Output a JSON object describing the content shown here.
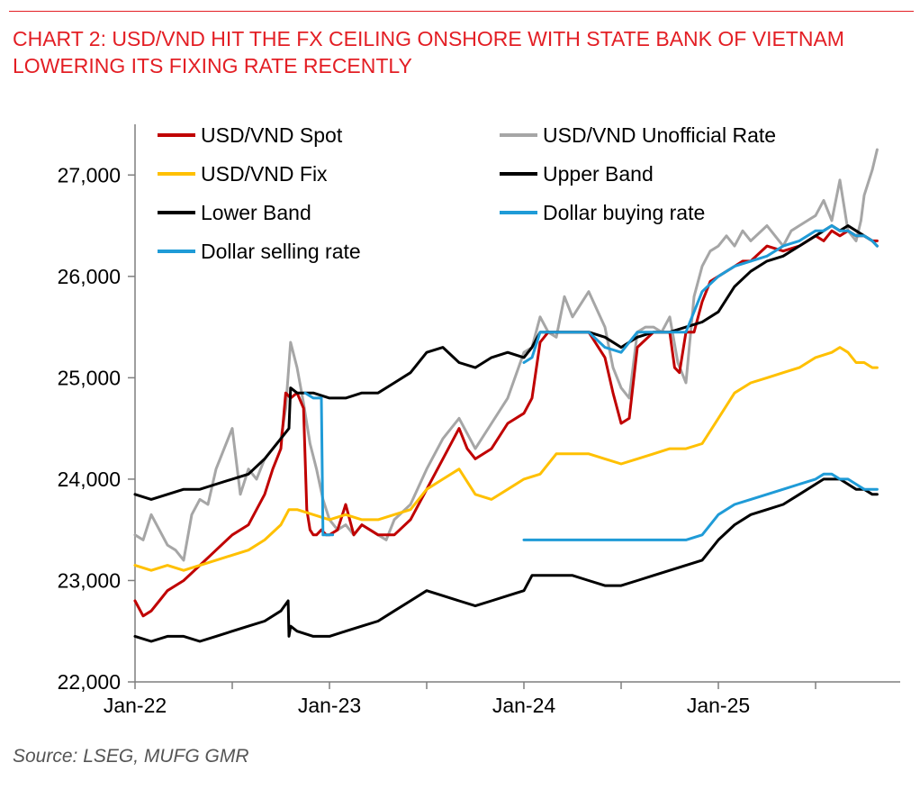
{
  "page": {
    "title": "CHART 2: USD/VND HIT THE FX CEILING ONSHORE WITH STATE BANK OF VIETNAM LOWERING ITS FIXING RATE RECENTLY",
    "source": "Source: LSEG, MUFG GMR",
    "accent_color": "#e31e24"
  },
  "chart_data": {
    "type": "line",
    "title": "CHART 2: USD/VND HIT THE FX CEILING ONSHORE WITH STATE BANK OF VIETNAM LOWERING ITS FIXING RATE RECENTLY",
    "xlabel": "",
    "ylabel": "",
    "x_unit": "months since Jan-22",
    "xlim": [
      0,
      46
    ],
    "ylim": [
      22000,
      27500
    ],
    "y_ticks": [
      22000,
      23000,
      24000,
      25000,
      26000,
      27000
    ],
    "y_tick_labels": [
      "22,000",
      "23,000",
      "24,000",
      "25,000",
      "26,000",
      "27,000"
    ],
    "x_ticks": [
      0,
      12,
      24,
      36
    ],
    "x_tick_labels": [
      "Jan-22",
      "Jan-23",
      "Jan-24",
      "Jan-25"
    ],
    "grid": false,
    "legend_position": "top-left",
    "series": [
      {
        "name": "USD/VND Unofficial Rate",
        "color": "#a6a6a6",
        "x": [
          0,
          0.5,
          1,
          1.5,
          2,
          2.5,
          3,
          3.5,
          4,
          4.5,
          5,
          5.5,
          6,
          6.5,
          7,
          7.5,
          8,
          8.5,
          9,
          9.3,
          9.6,
          10,
          10.4,
          10.8,
          11.2,
          11.6,
          12,
          12.5,
          13,
          13.5,
          14,
          14.5,
          15,
          15.5,
          16,
          17,
          18,
          19,
          20,
          21,
          22,
          23,
          24,
          24.5,
          25,
          25.5,
          26,
          26.5,
          27,
          28,
          29,
          29.5,
          30,
          30.5,
          31,
          31.5,
          32,
          32.5,
          33,
          33.5,
          34,
          34.5,
          35,
          35.5,
          36,
          36.5,
          37,
          37.5,
          38,
          39,
          39.5,
          40,
          40.5,
          41,
          41.5,
          42,
          42.5,
          43,
          43.5,
          44,
          44.5,
          44.8,
          45,
          45.5,
          45.8
        ],
        "values": [
          23450,
          23400,
          23650,
          23500,
          23350,
          23300,
          23200,
          23650,
          23800,
          23750,
          24100,
          24300,
          24500,
          23850,
          24100,
          24000,
          24200,
          24300,
          24400,
          24700,
          25350,
          25100,
          24750,
          24350,
          24100,
          23800,
          23600,
          23500,
          23550,
          23450,
          23550,
          23500,
          23450,
          23400,
          23600,
          23750,
          24100,
          24400,
          24600,
          24300,
          24550,
          24800,
          25250,
          25300,
          25600,
          25450,
          25400,
          25800,
          25600,
          25850,
          25500,
          25100,
          24900,
          24800,
          25450,
          25500,
          25500,
          25450,
          25600,
          25150,
          24950,
          25800,
          26100,
          26250,
          26300,
          26400,
          26300,
          26450,
          26350,
          26500,
          26400,
          26300,
          26450,
          26500,
          26550,
          26600,
          26750,
          26550,
          26950,
          26450,
          26350,
          26550,
          26800,
          27050,
          27250
        ]
      },
      {
        "name": "USD/VND Spot",
        "color": "#c00000",
        "x": [
          0,
          0.5,
          1,
          1.5,
          2,
          3,
          4,
          5,
          6,
          7,
          8,
          8.5,
          9,
          9.3,
          9.6,
          10,
          10.4,
          10.6,
          10.8,
          11,
          11.2,
          11.5,
          11.8,
          12,
          12.5,
          13,
          13.5,
          14,
          15,
          16,
          17,
          18,
          19,
          20,
          20.5,
          21,
          22,
          23,
          24,
          24.5,
          25,
          25.5,
          26,
          27,
          28,
          29,
          29.5,
          30,
          30.5,
          31,
          32,
          33,
          33.3,
          33.6,
          34,
          34.5,
          35,
          35.5,
          36,
          36.5,
          37,
          37.5,
          38,
          39,
          40,
          41,
          42,
          42.5,
          43,
          43.5,
          44,
          44.5,
          45,
          45.5,
          45.8
        ],
        "values": [
          22800,
          22650,
          22700,
          22800,
          22900,
          23000,
          23150,
          23300,
          23450,
          23550,
          23850,
          24100,
          24300,
          24850,
          24800,
          24850,
          24700,
          23700,
          23500,
          23450,
          23450,
          23500,
          23450,
          23450,
          23500,
          23750,
          23450,
          23550,
          23450,
          23450,
          23600,
          23900,
          24200,
          24500,
          24300,
          24200,
          24300,
          24550,
          24650,
          24800,
          25350,
          25450,
          25450,
          25450,
          25450,
          25200,
          24850,
          24550,
          24600,
          25300,
          25450,
          25450,
          25100,
          25050,
          25450,
          25450,
          25750,
          25950,
          26000,
          26050,
          26100,
          26150,
          26150,
          26300,
          26250,
          26300,
          26400,
          26350,
          26450,
          26400,
          26450,
          26400,
          26400,
          26350,
          26350
        ]
      },
      {
        "name": "USD/VND Fix",
        "color": "#ffc000",
        "x": [
          0,
          1,
          2,
          3,
          4,
          5,
          6,
          7,
          8,
          9,
          9.5,
          10,
          11,
          12,
          13,
          14,
          15,
          16,
          17,
          18,
          19,
          20,
          21,
          22,
          23,
          24,
          25,
          26,
          27,
          28,
          29,
          30,
          31,
          32,
          33,
          34,
          35,
          36,
          37,
          38,
          39,
          40,
          41,
          42,
          43,
          43.5,
          44,
          44.5,
          45,
          45.5,
          45.8
        ],
        "values": [
          23150,
          23100,
          23150,
          23100,
          23150,
          23200,
          23250,
          23300,
          23400,
          23550,
          23700,
          23700,
          23650,
          23600,
          23650,
          23600,
          23600,
          23650,
          23700,
          23900,
          24000,
          24100,
          23850,
          23800,
          23900,
          24000,
          24050,
          24250,
          24250,
          24250,
          24200,
          24150,
          24200,
          24250,
          24300,
          24300,
          24350,
          24600,
          24850,
          24950,
          25000,
          25050,
          25100,
          25200,
          25250,
          25300,
          25250,
          25150,
          25150,
          25100,
          25100
        ]
      },
      {
        "name": "Upper Band",
        "color": "#000000",
        "x": [
          0,
          1,
          2,
          3,
          4,
          5,
          6,
          7,
          8,
          9,
          9.5,
          9.6,
          10,
          10.5,
          11,
          12,
          13,
          14,
          15,
          16,
          17,
          18,
          19,
          20,
          21,
          22,
          23,
          24,
          24.5,
          25,
          26,
          27,
          28,
          29,
          30,
          31,
          32,
          33,
          34,
          35,
          36,
          37,
          38,
          39,
          40,
          41,
          42,
          42.5,
          43,
          43.5,
          44,
          44.5,
          45,
          45.5,
          45.8
        ],
        "values": [
          23850,
          23800,
          23850,
          23900,
          23900,
          23950,
          24000,
          24050,
          24200,
          24400,
          24500,
          24900,
          24850,
          24850,
          24850,
          24800,
          24800,
          24850,
          24850,
          24950,
          25050,
          25250,
          25300,
          25150,
          25100,
          25200,
          25250,
          25200,
          25300,
          25450,
          25450,
          25450,
          25450,
          25400,
          25300,
          25400,
          25450,
          25450,
          25500,
          25550,
          25650,
          25900,
          26050,
          26150,
          26200,
          26300,
          26400,
          26450,
          26500,
          26450,
          26500,
          26450,
          26400,
          26350,
          26300
        ]
      },
      {
        "name": "Lower Band",
        "color": "#000000",
        "x": [
          0,
          1,
          2,
          3,
          4,
          5,
          6,
          7,
          8,
          9,
          9.45,
          9.5,
          9.6,
          10,
          11,
          12,
          13,
          14,
          15,
          16,
          17,
          18,
          19,
          20,
          21,
          22,
          23,
          24,
          24.5,
          25,
          26,
          27,
          28,
          29,
          30,
          31,
          32,
          33,
          34,
          35,
          36,
          37,
          38,
          39,
          40,
          41,
          42,
          42.5,
          43,
          43.5,
          44,
          44.5,
          45,
          45.5,
          45.8
        ],
        "values": [
          22450,
          22400,
          22450,
          22450,
          22400,
          22450,
          22500,
          22550,
          22600,
          22700,
          22800,
          22450,
          22550,
          22500,
          22450,
          22450,
          22500,
          22550,
          22600,
          22700,
          22800,
          22900,
          22850,
          22800,
          22750,
          22800,
          22850,
          22900,
          23050,
          23050,
          23050,
          23050,
          23000,
          22950,
          22950,
          23000,
          23050,
          23100,
          23150,
          23200,
          23400,
          23550,
          23650,
          23700,
          23750,
          23850,
          23950,
          24000,
          24000,
          24000,
          23950,
          23900,
          23900,
          23850,
          23850
        ]
      },
      {
        "name": "Dollar buying rate",
        "color": "#1f9bd7",
        "x": [
          24,
          24.5,
          25,
          26,
          27,
          28,
          29,
          30,
          31,
          32,
          33,
          34,
          35,
          36,
          37,
          38,
          39,
          40,
          41,
          42,
          42.5,
          43,
          43.5,
          44,
          44.5,
          45,
          45.5,
          45.8
        ],
        "values": [
          23400,
          23400,
          23400,
          23400,
          23400,
          23400,
          23400,
          23400,
          23400,
          23400,
          23400,
          23400,
          23450,
          23650,
          23750,
          23800,
          23850,
          23900,
          23950,
          24000,
          24050,
          24050,
          24000,
          24000,
          23950,
          23900,
          23900,
          23900
        ]
      },
      {
        "name": "Dollar selling rate",
        "color": "#1f9bd7",
        "x": [
          10.5,
          11,
          11.5,
          11.6,
          11.9,
          12.2,
          24,
          24.5,
          25,
          26,
          27,
          28,
          29,
          30,
          31,
          32,
          33,
          34,
          35,
          36,
          37,
          38,
          39,
          40,
          41,
          42,
          42.5,
          43,
          43.5,
          44,
          44.5,
          45,
          45.5,
          45.8
        ],
        "values": [
          24850,
          24800,
          24800,
          23450,
          23450,
          23450,
          25150,
          25200,
          25450,
          25450,
          25450,
          25450,
          25300,
          25250,
          25450,
          25450,
          25450,
          25450,
          25850,
          26000,
          26100,
          26150,
          26200,
          26300,
          26350,
          26450,
          26450,
          26500,
          26450,
          26450,
          26400,
          26400,
          26350,
          26300
        ]
      }
    ],
    "legend_order": [
      "USD/VND Spot",
      "USD/VND Unofficial Rate",
      "USD/VND Fix",
      "Upper Band",
      "Lower Band",
      "Dollar buying rate",
      "Dollar selling rate"
    ]
  }
}
